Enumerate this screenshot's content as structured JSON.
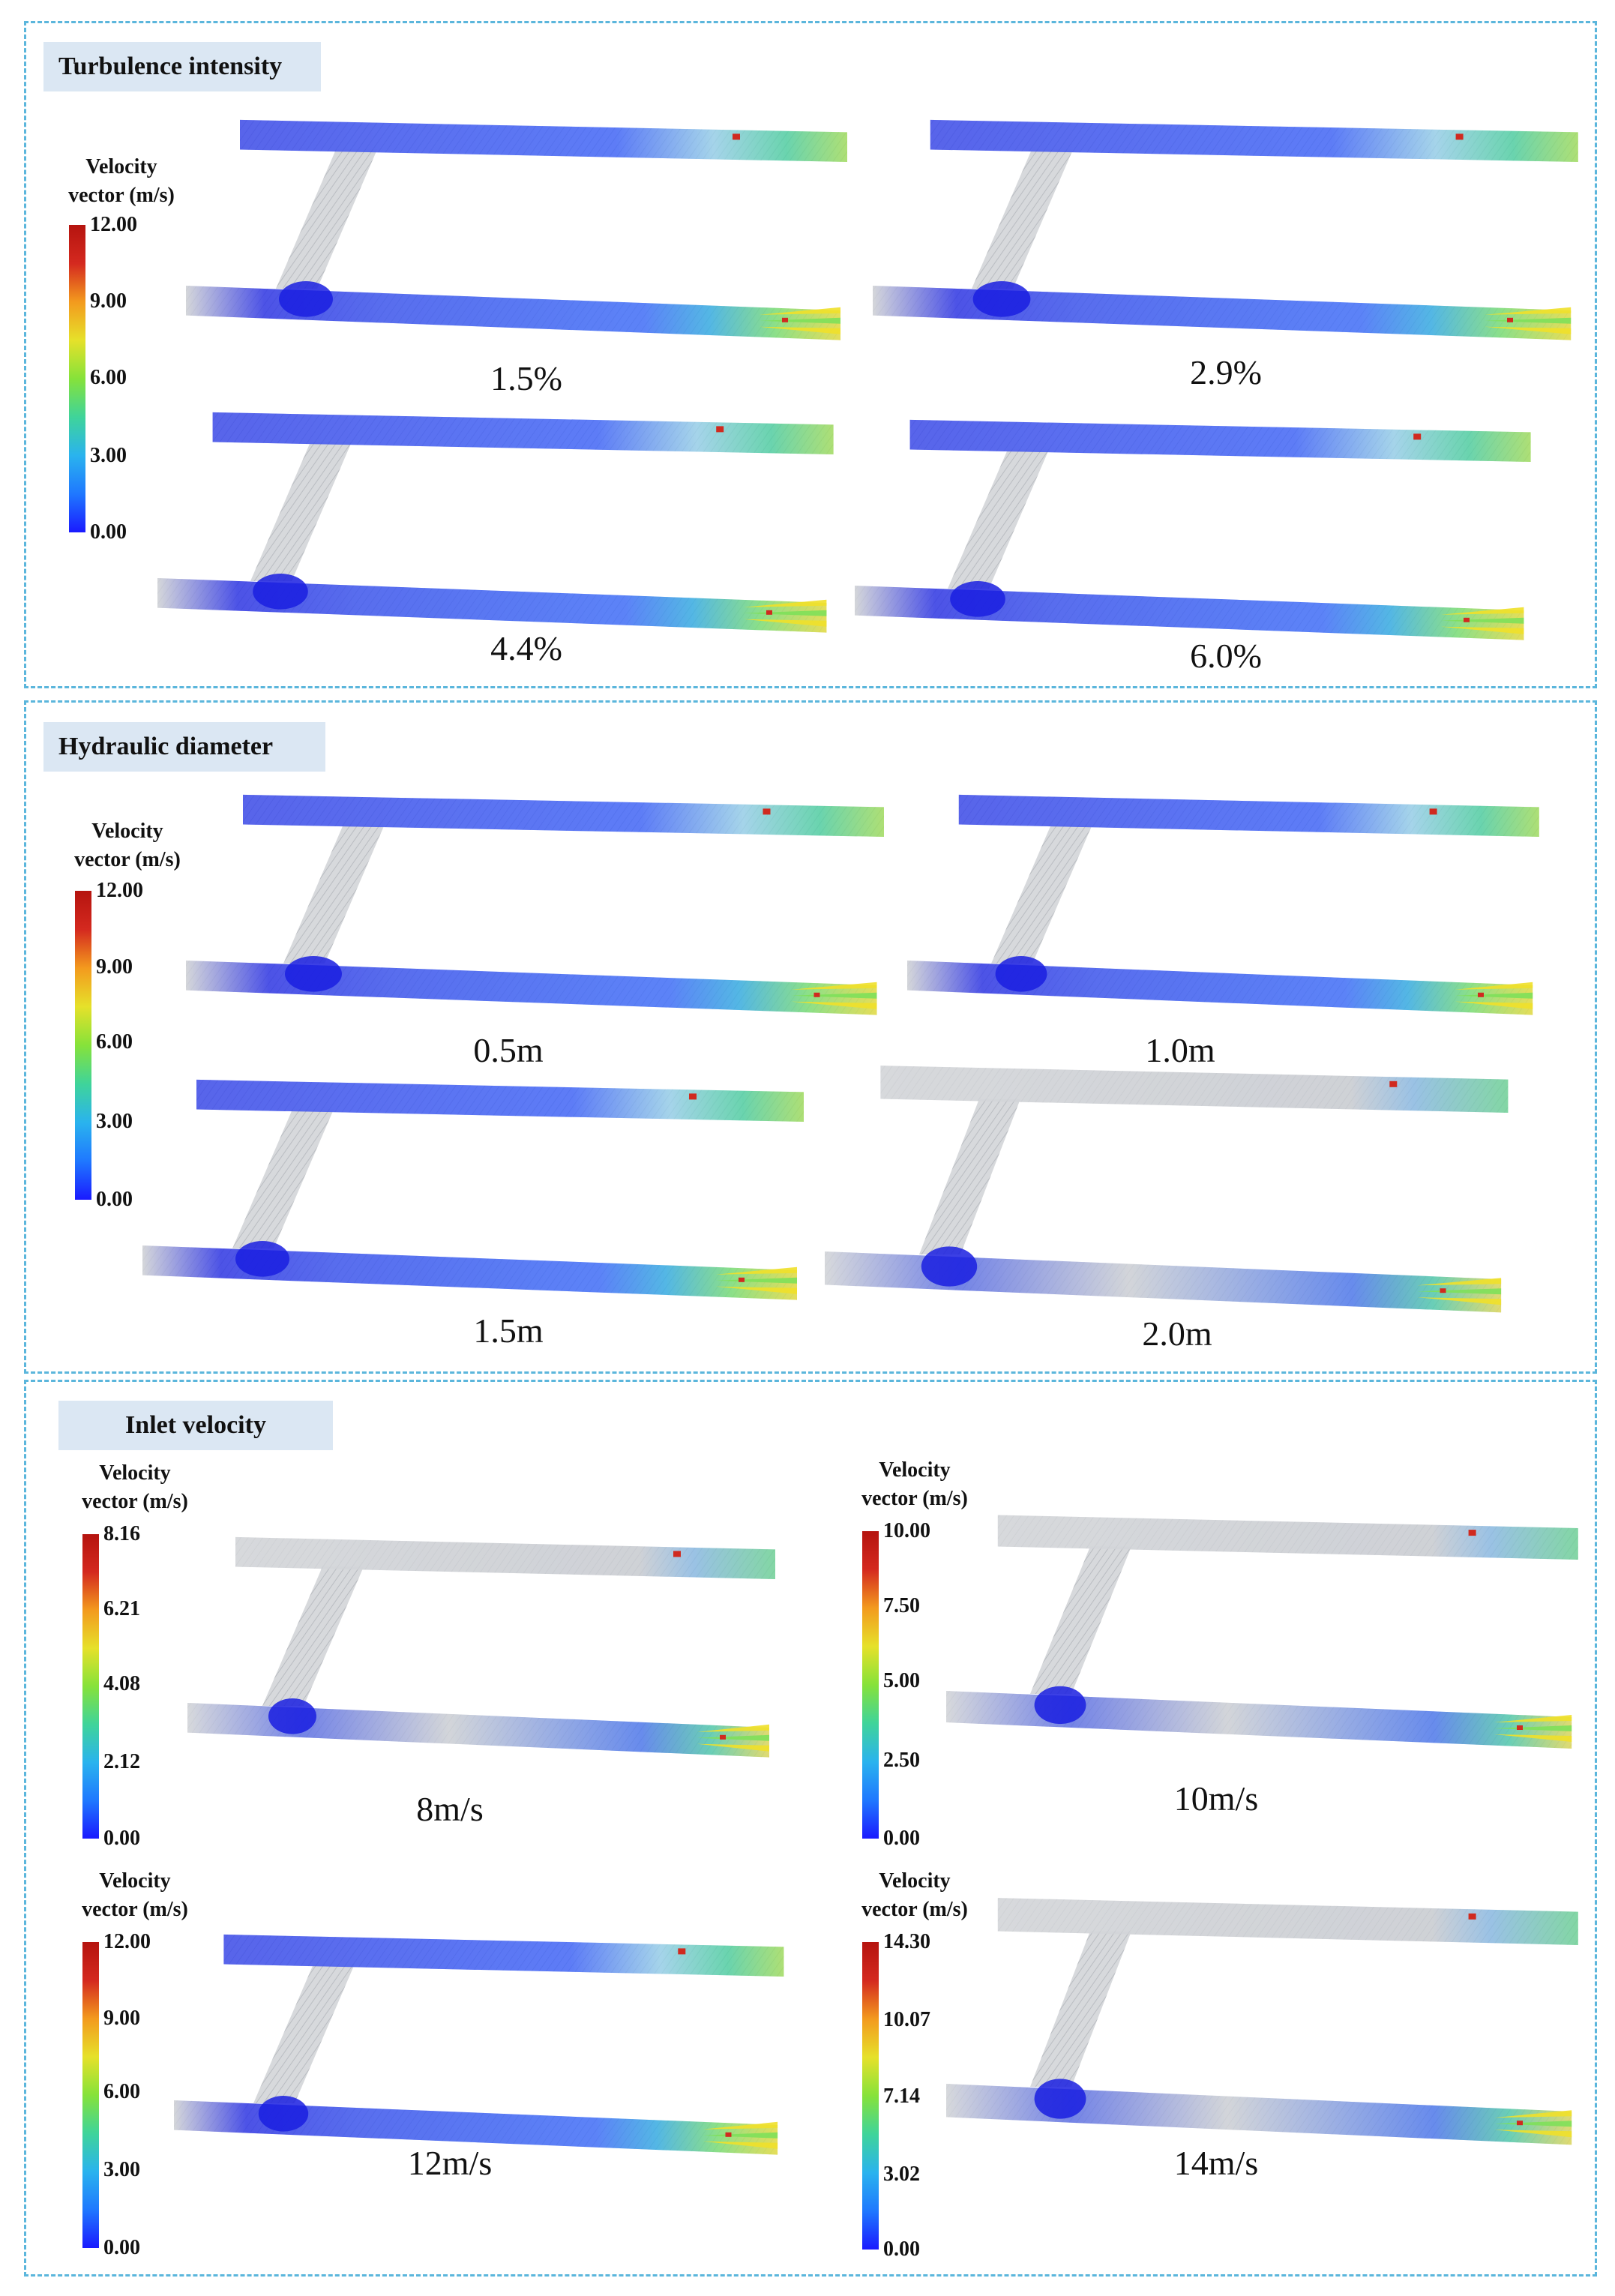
{
  "colormap": [
    "#1a1aff",
    "#1f78ff",
    "#2ab3ee",
    "#3fd49a",
    "#86e23a",
    "#e6e12a",
    "#f39a1e",
    "#d4291f",
    "#b5140f"
  ],
  "panels": [
    {
      "title": "Turbulence intensity",
      "legend": {
        "title_line1": "Velocity",
        "title_line2": "vector (m/s)",
        "ticks": [
          "12.00",
          "9.00",
          "6.00",
          "3.00",
          "0.00"
        ]
      },
      "cases": [
        {
          "label": "1.5%"
        },
        {
          "label": "2.9%"
        },
        {
          "label": "4.4%"
        },
        {
          "label": "6.0%"
        }
      ]
    },
    {
      "title": "Hydraulic diameter",
      "legend": {
        "title_line1": "Velocity",
        "title_line2": "vector (m/s)",
        "ticks": [
          "12.00",
          "9.00",
          "6.00",
          "3.00",
          "0.00"
        ]
      },
      "cases": [
        {
          "label": "0.5m"
        },
        {
          "label": "1.0m"
        },
        {
          "label": "1.5m"
        },
        {
          "label": "2.0m"
        }
      ]
    },
    {
      "title": "Inlet velocity",
      "cases": [
        {
          "label": "8m/s",
          "legend": {
            "title_line1": "Velocity",
            "title_line2": "vector (m/s)",
            "ticks": [
              "8.16",
              "6.21",
              "4.08",
              "2.12",
              "0.00"
            ]
          }
        },
        {
          "label": "10m/s",
          "legend": {
            "title_line1": "Velocity",
            "title_line2": "vector (m/s)",
            "ticks": [
              "10.00",
              "7.50",
              "5.00",
              "2.50",
              "0.00"
            ]
          }
        },
        {
          "label": "12m/s",
          "legend": {
            "title_line1": "Velocity",
            "title_line2": "vector (m/s)",
            "ticks": [
              "12.00",
              "9.00",
              "6.00",
              "3.00",
              "0.00"
            ]
          }
        },
        {
          "label": "14m/s",
          "legend": {
            "title_line1": "Velocity",
            "title_line2": "vector (m/s)",
            "ticks": [
              "14.30",
              "10.07",
              "7.14",
              "3.02",
              "0.00"
            ]
          }
        }
      ]
    }
  ]
}
